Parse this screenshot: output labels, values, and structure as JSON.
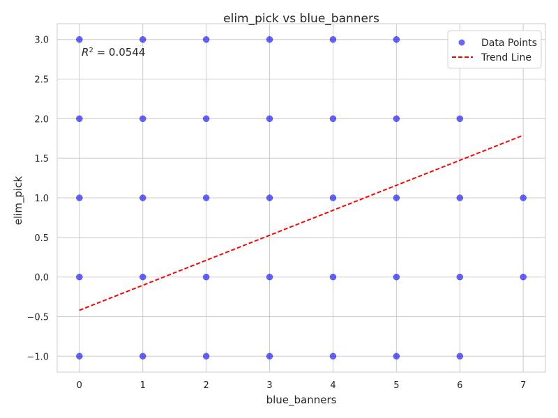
{
  "chart_data": {
    "type": "scatter",
    "title": "elim_pick vs blue_banners",
    "xlabel": "blue_banners",
    "ylabel": "elim_pick",
    "xlim": [
      -0.35,
      7.35
    ],
    "ylim": [
      -1.2,
      3.2
    ],
    "xticks": [
      0,
      1,
      2,
      3,
      4,
      5,
      6,
      7
    ],
    "yticks": [
      -1.0,
      -0.5,
      0.0,
      0.5,
      1.0,
      1.5,
      2.0,
      2.5,
      3.0
    ],
    "ytick_labels": [
      "−1.0",
      "−0.5",
      "0.0",
      "0.5",
      "1.0",
      "1.5",
      "2.0",
      "2.5",
      "3.0"
    ],
    "xtick_labels": [
      "0",
      "1",
      "2",
      "3",
      "4",
      "5",
      "6",
      "7"
    ],
    "grid": true,
    "legend_position": "top-right",
    "annotation": {
      "prefix": "R",
      "superscript": "2",
      "suffix": " = 0.0544"
    },
    "series": [
      {
        "name": "Data Points",
        "kind": "scatter",
        "color": "#0000ff",
        "points": [
          [
            0,
            3
          ],
          [
            0,
            2
          ],
          [
            0,
            1
          ],
          [
            0,
            0
          ],
          [
            0,
            -1
          ],
          [
            1,
            3
          ],
          [
            1,
            2
          ],
          [
            1,
            1
          ],
          [
            1,
            0
          ],
          [
            1,
            -1
          ],
          [
            2,
            3
          ],
          [
            2,
            2
          ],
          [
            2,
            1
          ],
          [
            2,
            0
          ],
          [
            2,
            -1
          ],
          [
            3,
            3
          ],
          [
            3,
            2
          ],
          [
            3,
            1
          ],
          [
            3,
            0
          ],
          [
            3,
            -1
          ],
          [
            4,
            3
          ],
          [
            4,
            2
          ],
          [
            4,
            1
          ],
          [
            4,
            0
          ],
          [
            4,
            -1
          ],
          [
            5,
            3
          ],
          [
            5,
            2
          ],
          [
            5,
            1
          ],
          [
            5,
            0
          ],
          [
            5,
            -1
          ],
          [
            6,
            2
          ],
          [
            6,
            1
          ],
          [
            6,
            0
          ],
          [
            6,
            -1
          ],
          [
            7,
            1
          ],
          [
            7,
            0
          ]
        ]
      },
      {
        "name": "Trend Line",
        "kind": "line",
        "color": "#ff0000",
        "dashed": true,
        "points": [
          [
            0,
            -0.42
          ],
          [
            7,
            1.79
          ]
        ]
      }
    ]
  }
}
